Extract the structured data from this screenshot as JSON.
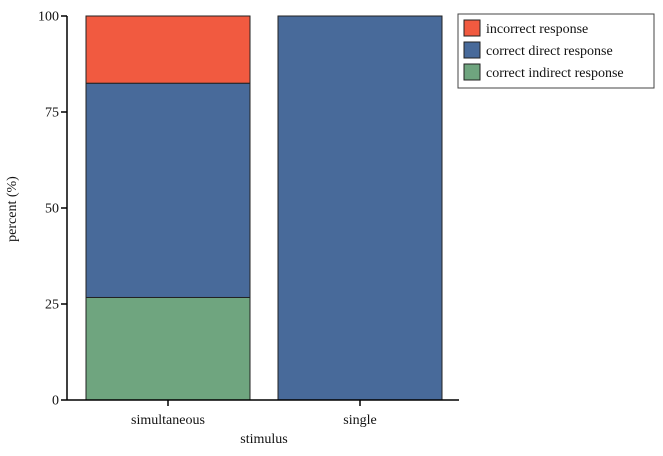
{
  "chart_data": {
    "type": "bar",
    "stacked": true,
    "title": "",
    "xlabel": "stimulus",
    "ylabel": "percent (%)",
    "ylim": [
      0,
      100
    ],
    "yticks": [
      0,
      25,
      50,
      75,
      100
    ],
    "categories": [
      "simultaneous",
      "single"
    ],
    "series": [
      {
        "name": "correct indirect response",
        "color": "#6fa57f",
        "values": [
          26.7,
          0
        ]
      },
      {
        "name": "correct direct response",
        "color": "#486a9a",
        "values": [
          55.8,
          100
        ]
      },
      {
        "name": "incorrect response",
        "color": "#f15a40",
        "values": [
          17.5,
          0
        ]
      }
    ],
    "legend": {
      "position": "top-right",
      "order": [
        "incorrect response",
        "correct direct response",
        "correct indirect response"
      ]
    },
    "grid": false
  }
}
